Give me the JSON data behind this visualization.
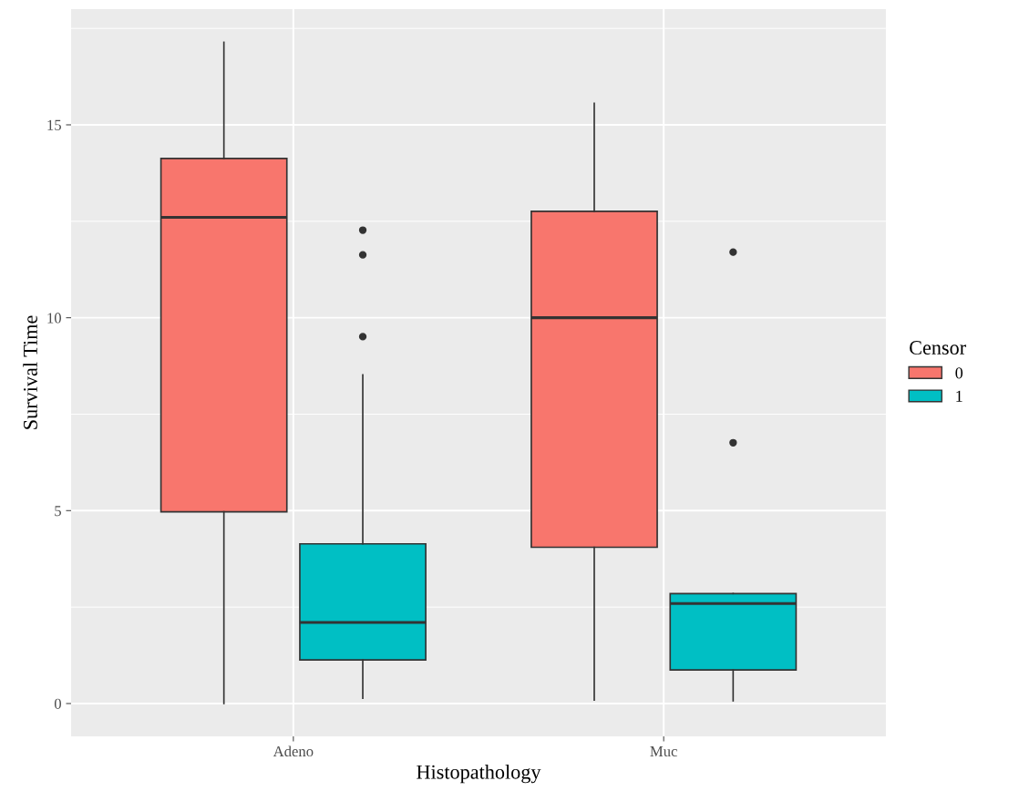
{
  "chart_data": {
    "type": "box",
    "xlabel": "Histopathology",
    "ylabel": "Survival Time",
    "legend_title": "Censor",
    "categories": [
      "Adeno",
      "Muc"
    ],
    "ylim": [
      -0.85,
      18.0
    ],
    "yticks": [
      0,
      5,
      10,
      15
    ],
    "grid": true,
    "legend": "right",
    "series": [
      {
        "name": "0",
        "color": "#f8766d",
        "boxes": [
          {
            "low": 0,
            "q1": 4.97,
            "median": 12.6,
            "q3": 14.13,
            "high": 17.14
          },
          {
            "low": 0.09,
            "q1": 4.05,
            "median": 10.0,
            "q3": 12.76,
            "high": 15.56
          }
        ]
      },
      {
        "name": "1",
        "color": "#00bfc4",
        "boxes": [
          {
            "low": 0.14,
            "q1": 1.13,
            "median": 2.1,
            "q3": 4.14,
            "high": 8.52,
            "outliers": [
              12.27,
              11.63,
              9.51
            ]
          },
          {
            "low": 0.07,
            "q1": 0.87,
            "median": 2.59,
            "q3": 2.85,
            "high": 2.85,
            "outliers": [
              11.7,
              6.76
            ]
          }
        ]
      }
    ]
  }
}
